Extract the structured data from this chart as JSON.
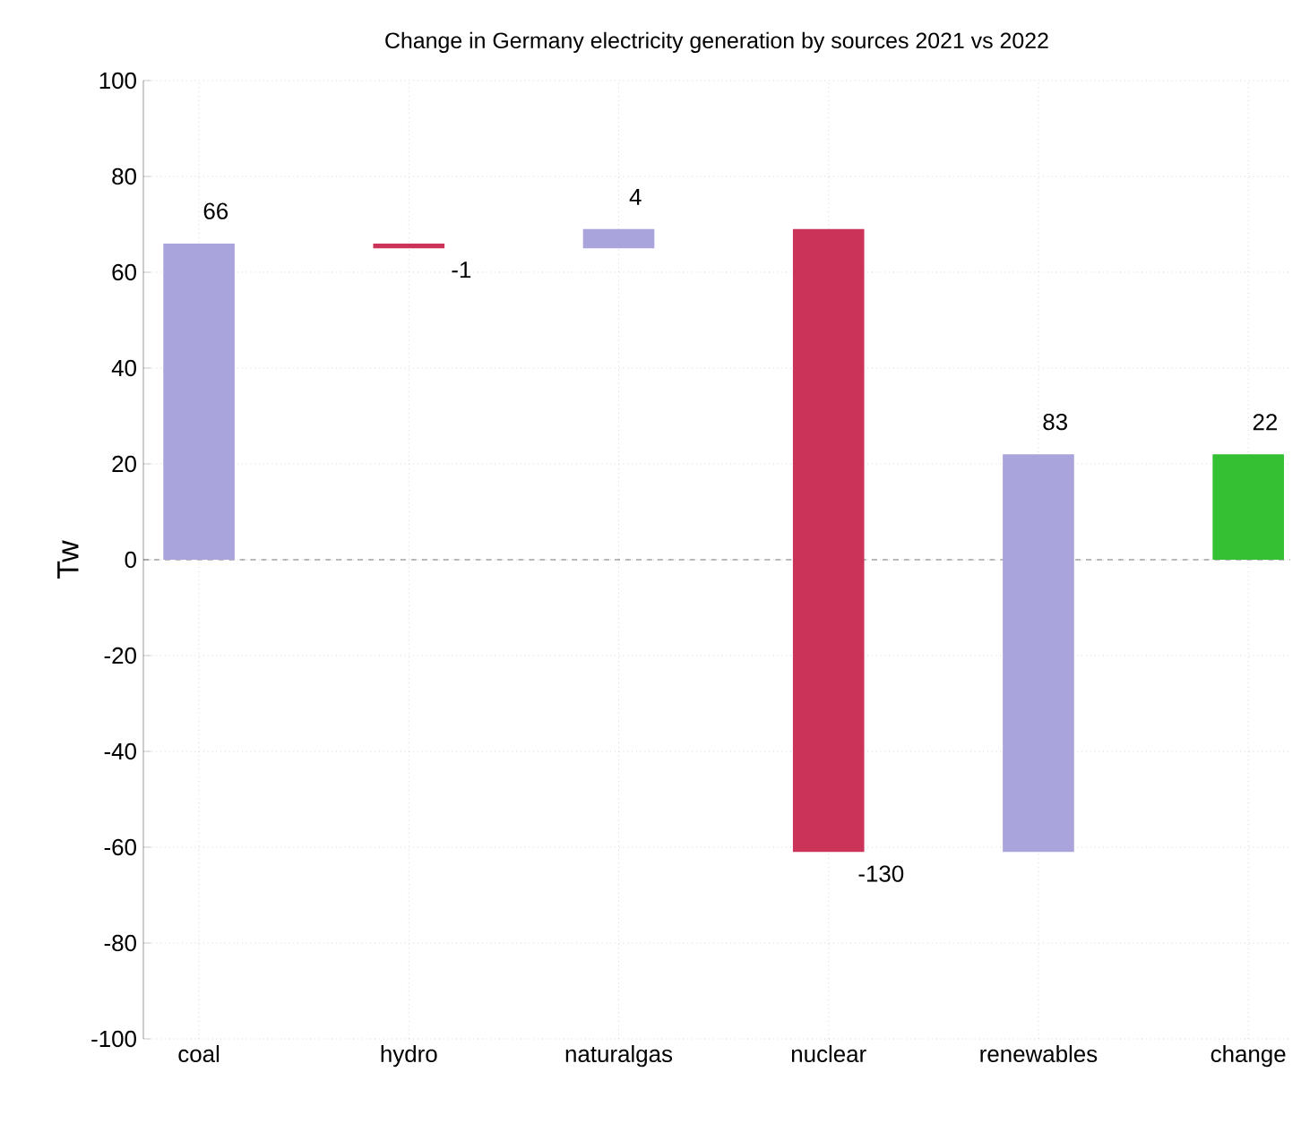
{
  "chart_data": {
    "type": "bar",
    "title": "Change in Germany electricity generation by sources 2021 vs 2022",
    "ylabel": "Tw",
    "categories": [
      "coal",
      "hydro",
      "naturalgas",
      "nuclear",
      "renewables",
      "change"
    ],
    "values": [
      66,
      -1,
      4,
      -130,
      83,
      22
    ],
    "base": [
      0,
      66,
      65,
      69,
      -61,
      0
    ],
    "colors": [
      "#a9a4dc",
      "#cc3359",
      "#a9a4dc",
      "#cc3359",
      "#a9a4dc",
      "#33c133"
    ],
    "data_labels": true,
    "ylim": [
      -100,
      100
    ],
    "yticks": [
      -100,
      -80,
      -60,
      -40,
      -20,
      0,
      20,
      40,
      60,
      80,
      100
    ],
    "grid": true,
    "ref_lines": [
      {
        "axis": "y",
        "value": 0,
        "line_style": "dashed",
        "color": "#555555"
      }
    ]
  }
}
